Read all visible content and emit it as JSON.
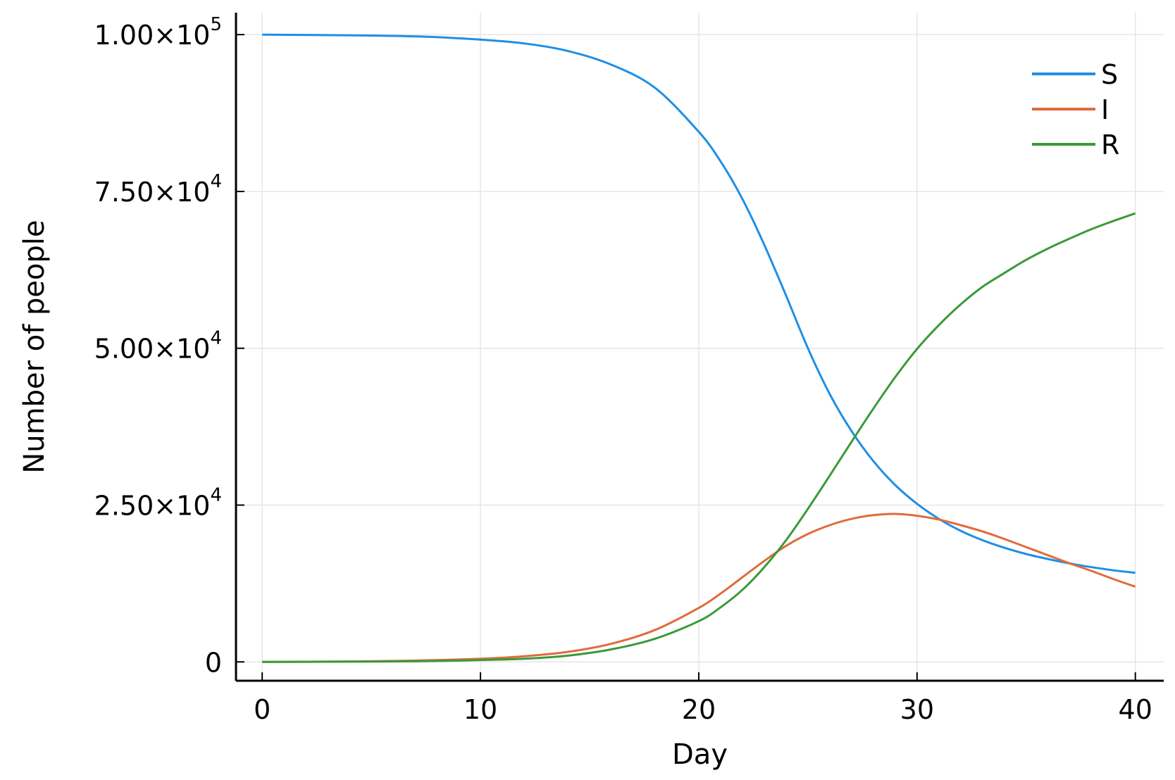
{
  "chart_data": {
    "type": "line",
    "title": "",
    "xlabel": "Day",
    "ylabel": "Number of people",
    "xlim": [
      -1.2,
      41.3
    ],
    "ylim": [
      -3000,
      103500
    ],
    "grid": true,
    "legend_position": "top-right",
    "x_ticks": [
      {
        "value": 0,
        "label": "0"
      },
      {
        "value": 10,
        "label": "10"
      },
      {
        "value": 20,
        "label": "20"
      },
      {
        "value": 30,
        "label": "30"
      },
      {
        "value": 40,
        "label": "40"
      }
    ],
    "y_ticks": [
      {
        "value": 0,
        "mantissa": "0",
        "exponent": ""
      },
      {
        "value": 25000,
        "mantissa": "2.50×10",
        "exponent": "4"
      },
      {
        "value": 50000,
        "mantissa": "5.00×10",
        "exponent": "4"
      },
      {
        "value": 75000,
        "mantissa": "7.50×10",
        "exponent": "4"
      },
      {
        "value": 100000,
        "mantissa": "1.00×10",
        "exponent": "5"
      }
    ],
    "x": [
      0,
      2,
      4,
      6,
      8,
      10,
      12,
      14,
      16,
      18,
      20,
      21,
      22,
      23,
      24,
      25,
      26,
      27,
      28,
      29,
      30,
      31,
      32,
      33,
      34,
      35,
      36,
      37,
      38,
      39,
      40
    ],
    "series": [
      {
        "name": "S",
        "color": "#1f8fe5",
        "values": [
          100000,
          99950,
          99900,
          99800,
          99600,
          99200,
          98600,
          97400,
          95200,
          91500,
          84500,
          79800,
          73800,
          66500,
          58400,
          50000,
          42700,
          36800,
          32000,
          28200,
          25200,
          22800,
          20900,
          19400,
          18200,
          17200,
          16400,
          15700,
          15100,
          14600,
          14200
        ]
      },
      {
        "name": "I",
        "color": "#e06b3c",
        "values": [
          0,
          30,
          80,
          150,
          300,
          500,
          900,
          1600,
          2900,
          5100,
          8600,
          10900,
          13500,
          16100,
          18500,
          20400,
          21800,
          22800,
          23400,
          23600,
          23300,
          22700,
          21800,
          20800,
          19600,
          18300,
          17000,
          15700,
          14500,
          13200,
          12000
        ]
      },
      {
        "name": "R",
        "color": "#3a9a3a",
        "values": [
          0,
          20,
          40,
          80,
          150,
          300,
          500,
          1000,
          2000,
          3700,
          6500,
          8700,
          11500,
          15100,
          19400,
          24400,
          29700,
          35100,
          40400,
          45400,
          49900,
          53700,
          57000,
          59800,
          62000,
          64100,
          65900,
          67500,
          69000,
          70300,
          71500
        ]
      }
    ]
  }
}
